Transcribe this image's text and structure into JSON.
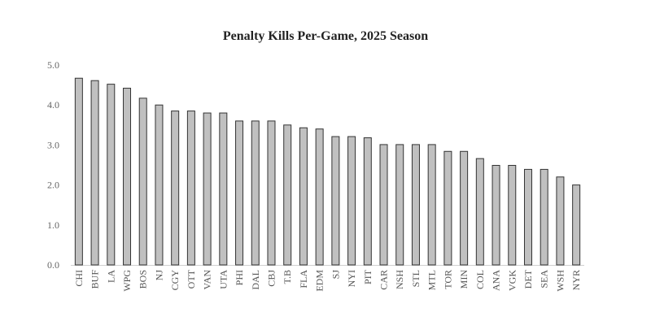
{
  "chart_data": {
    "type": "bar",
    "title": "Penalty Kills Per-Game, 2025 Season",
    "xlabel": "",
    "ylabel": "",
    "ylim": [
      0,
      5
    ],
    "yticks": [
      "0.0",
      "1.0",
      "2.0",
      "3.0",
      "4.0",
      "5.0"
    ],
    "grid": false,
    "categories": [
      "CHI",
      "BUF",
      "LA",
      "WPG",
      "BOS",
      "NJ",
      "CGY",
      "OTT",
      "VAN",
      "UTA",
      "PHI",
      "DAL",
      "CBJ",
      "T.B",
      "FLA",
      "EDM",
      "SJ",
      "NYI",
      "PIT",
      "CAR",
      "NSH",
      "STL",
      "MTL",
      "TOR",
      "MIN",
      "COL",
      "ANA",
      "VGK",
      "DET",
      "SEA",
      "WSH",
      "NYR"
    ],
    "values": [
      4.67,
      4.61,
      4.52,
      4.42,
      4.17,
      4.0,
      3.85,
      3.85,
      3.8,
      3.8,
      3.6,
      3.6,
      3.6,
      3.5,
      3.43,
      3.4,
      3.21,
      3.21,
      3.18,
      3.01,
      3.01,
      3.01,
      3.01,
      2.84,
      2.84,
      2.66,
      2.49,
      2.49,
      2.39,
      2.39,
      2.2,
      2.0
    ],
    "bar_color": "#c0c0c0",
    "bar_edge_color": "#333333"
  }
}
